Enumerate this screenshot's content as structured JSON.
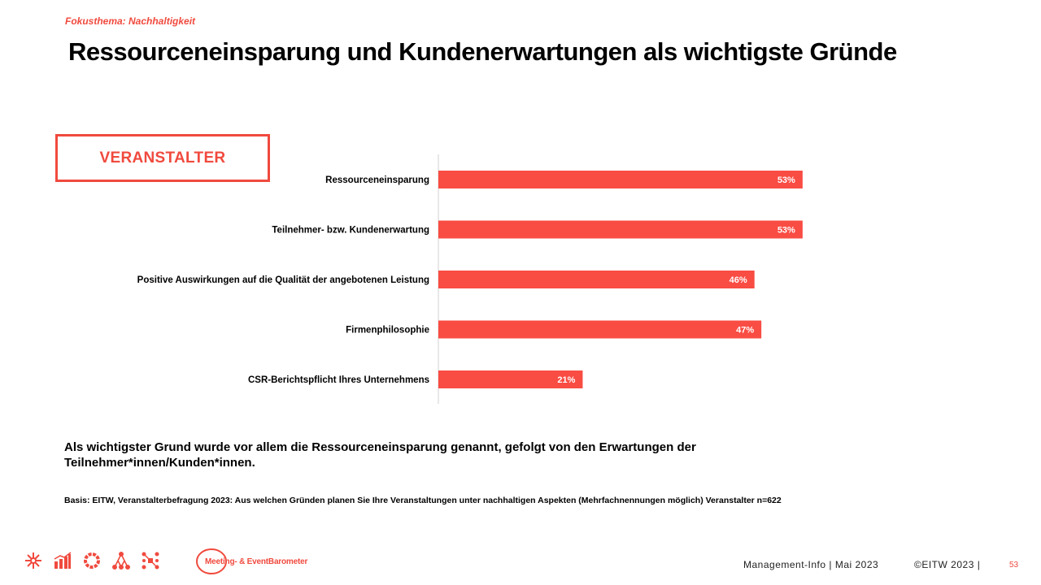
{
  "header": {
    "kicker": "Fokusthema: Nachhaltigkeit",
    "title": "Ressourceneinsparung und Kundenerwartungen als wichtigste Gründe"
  },
  "segment_label": "VERANSTALTER",
  "chart_data": {
    "type": "bar",
    "orientation": "horizontal",
    "categories": [
      "Ressourceneinsparung",
      "Teilnehmer- bzw. Kundenerwartung",
      "Positive Auswirkungen auf die Qualität der angebotenen Leistung",
      "Firmenphilosophie",
      "CSR-Berichtspflicht Ihres Unternehmens"
    ],
    "values": [
      53,
      53,
      46,
      47,
      21
    ],
    "value_labels": [
      "53%",
      "53%",
      "46%",
      "47%",
      "21%"
    ],
    "unit": "%",
    "xlim": [
      0,
      100
    ],
    "bar_color": "#f94c43",
    "grid": false,
    "legend": "none"
  },
  "summary": "Als wichtigster Grund wurde vor allem die Ressourceneinsparung genannt, gefolgt von den Erwartungen der Teilnehmer*innen/Kunden*innen.",
  "basis": "Basis: EITW, Veranstalterbefragung 2023: Aus welchen Gründen planen Sie Ihre Veranstaltungen unter nachhaltigen Aspekten (Mehrfachnennungen möglich) Veranstalter n=622",
  "footer": {
    "brand": "Meeting- & EventBarometer",
    "info": "Management-Info | Mai 2023",
    "copyright": "©EITW 2023 |",
    "page": "53",
    "icons": [
      "sparkle-icon",
      "bar-chart-icon",
      "ring-icon",
      "people-network-icon",
      "hub-icon"
    ]
  },
  "colors": {
    "accent": "#f04a3e",
    "bar": "#f94c43"
  }
}
